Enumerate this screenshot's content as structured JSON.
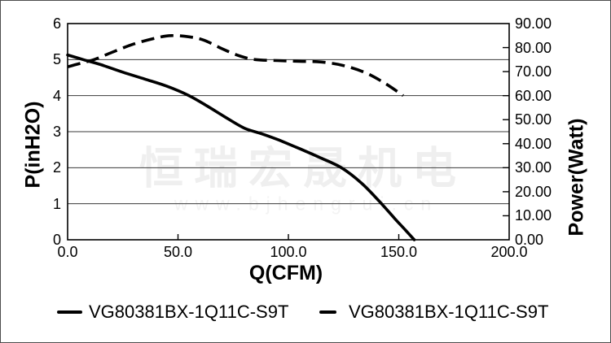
{
  "page": {
    "background": "#ffffff",
    "border_color": "#4d4d4d"
  },
  "watermark": {
    "line1": "恒瑞宏晟机电",
    "line2": "www.bjhengrui.cn"
  },
  "chart_data": {
    "type": "line",
    "title": "",
    "xlabel": "Q(CFM)",
    "ylabel_left": "P(inH2O)",
    "ylabel_right": "Power(Watt)",
    "x_range": [
      0,
      200
    ],
    "y_left_range": [
      0,
      6
    ],
    "y_right_range": [
      0,
      90
    ],
    "x_tick_labels": [
      "0.0",
      "50.0",
      "100.0",
      "150.0",
      "200.0"
    ],
    "y_left_tick_labels": [
      "0",
      "1",
      "2",
      "3",
      "4",
      "5",
      "6"
    ],
    "y_right_tick_labels": [
      "0.00",
      "10.00",
      "20.00",
      "30.00",
      "40.00",
      "50.00",
      "60.00",
      "70.00",
      "80.00",
      "90.00"
    ],
    "grid": "horizontal gridlines at each left-axis integer (every 15 W on right axis)",
    "legend_position": "bottom",
    "line_color": "#000000",
    "series": [
      {
        "name": "VG80381BX-1Q11C-S9T",
        "axis": "left",
        "unit": "inH2O",
        "line_style": "solid",
        "points": [
          [
            0,
            5.13
          ],
          [
            7,
            5.0
          ],
          [
            15,
            4.86
          ],
          [
            25,
            4.65
          ],
          [
            35,
            4.46
          ],
          [
            45,
            4.26
          ],
          [
            55,
            4.0
          ],
          [
            63,
            3.72
          ],
          [
            71,
            3.42
          ],
          [
            80,
            3.1
          ],
          [
            88,
            2.94
          ],
          [
            96,
            2.76
          ],
          [
            105,
            2.53
          ],
          [
            114,
            2.29
          ],
          [
            124,
            2.0
          ],
          [
            133,
            1.58
          ],
          [
            141,
            1.08
          ],
          [
            148,
            0.6
          ],
          [
            153,
            0.27
          ],
          [
            157,
            0.0
          ]
        ]
      },
      {
        "name": "VG80381BX-1Q11C-S9T",
        "axis": "right",
        "unit": "Watt",
        "line_style": "dashed",
        "points": [
          [
            0,
            72
          ],
          [
            6,
            73.5
          ],
          [
            12,
            75
          ],
          [
            20,
            78
          ],
          [
            30,
            81.5
          ],
          [
            40,
            84
          ],
          [
            47,
            85
          ],
          [
            55,
            84.5
          ],
          [
            62,
            83
          ],
          [
            70,
            79.5
          ],
          [
            78,
            76.5
          ],
          [
            85,
            75
          ],
          [
            95,
            74.6
          ],
          [
            105,
            74.3
          ],
          [
            115,
            74
          ],
          [
            125,
            72.5
          ],
          [
            135,
            69.5
          ],
          [
            144,
            65
          ],
          [
            152,
            60
          ]
        ]
      }
    ]
  }
}
